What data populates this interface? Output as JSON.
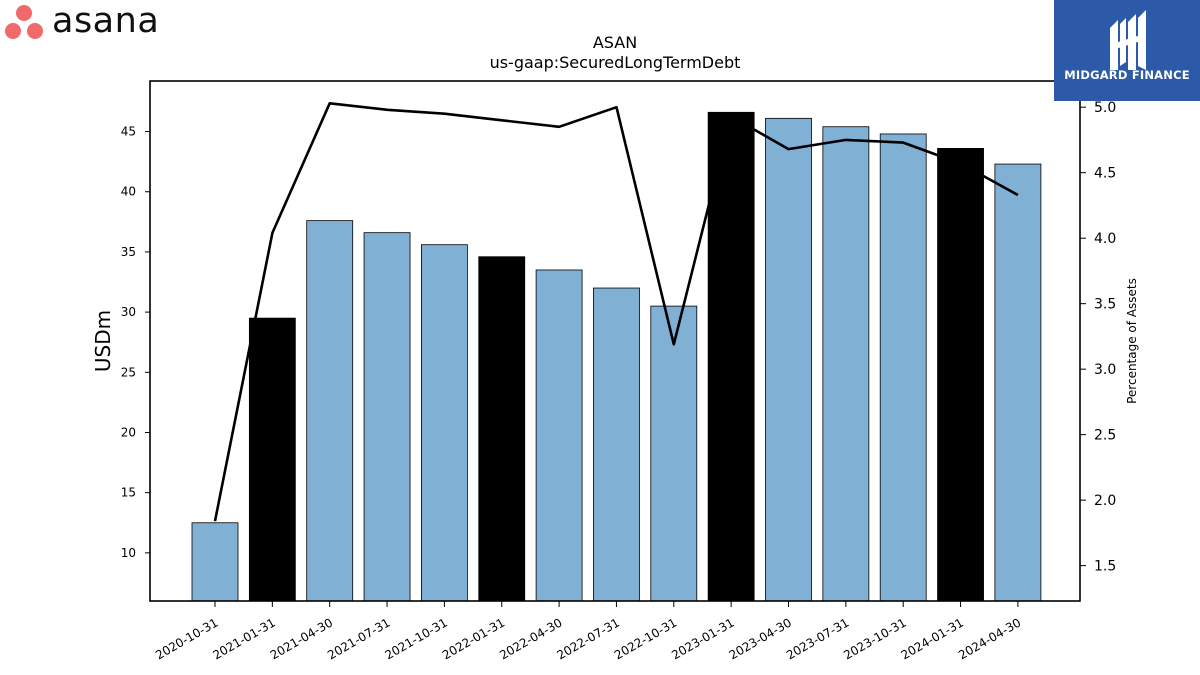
{
  "branding": {
    "company_logo_text": "asana",
    "dot_color": "#f06a6a",
    "partner_badge_text": "MIDGARD FINANCE",
    "partner_badge_color": "#2c5aa8"
  },
  "chart_data": {
    "type": "bar",
    "title": "ASAN",
    "subtitle": "us-gaap:SecuredLongTermDebt",
    "ylabel": "USDm",
    "y2label": "Percentage of Assets",
    "categories": [
      "2020-10-31",
      "2021-01-31",
      "2021-04-30",
      "2021-07-31",
      "2021-10-31",
      "2022-01-31",
      "2022-04-30",
      "2022-07-31",
      "2022-10-31",
      "2023-01-31",
      "2023-04-30",
      "2023-07-31",
      "2023-10-31",
      "2024-01-31",
      "2024-04-30"
    ],
    "series": [
      {
        "type": "bar",
        "axis": "left",
        "values": [
          12.5,
          29.5,
          37.6,
          36.6,
          35.6,
          34.6,
          33.5,
          32.0,
          30.5,
          46.6,
          46.1,
          45.4,
          44.8,
          43.6,
          42.3
        ],
        "highlight": [
          false,
          true,
          false,
          false,
          false,
          true,
          false,
          false,
          false,
          true,
          false,
          false,
          false,
          true,
          false
        ],
        "color": "#80b0d4",
        "highlight_color": "#000000"
      },
      {
        "type": "line",
        "axis": "right",
        "values": [
          1.84,
          4.04,
          5.03,
          4.98,
          4.95,
          4.9,
          4.85,
          5.0,
          3.19,
          4.93,
          4.68,
          4.75,
          4.73,
          4.57,
          4.33
        ],
        "color": "#000000"
      }
    ],
    "ylim": [
      6,
      49.2
    ],
    "y2lim": [
      1.23,
      5.2
    ],
    "yticks": [
      10,
      15,
      20,
      25,
      30,
      35,
      40,
      45
    ],
    "y2ticks": [
      1.5,
      2.0,
      2.5,
      3.0,
      3.5,
      4.0,
      4.5,
      5.0
    ],
    "grid": false
  }
}
